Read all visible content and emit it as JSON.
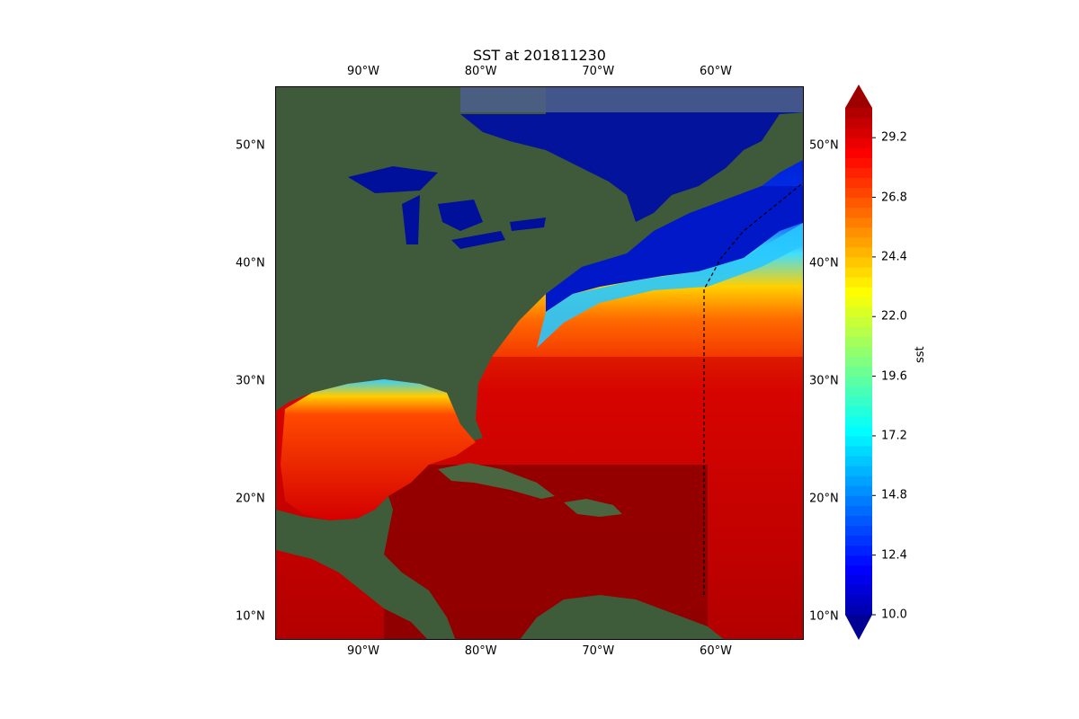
{
  "title": "SST at 201811230",
  "map": {
    "lon_ticks": [
      {
        "value": -90,
        "label": "90°W"
      },
      {
        "value": -80,
        "label": "80°W"
      },
      {
        "value": -70,
        "label": "70°W"
      },
      {
        "value": -60,
        "label": "60°W"
      }
    ],
    "lat_ticks": [
      {
        "value": 50,
        "label": "50°N"
      },
      {
        "value": 40,
        "label": "40°N"
      },
      {
        "value": 30,
        "label": "30°N"
      },
      {
        "value": 20,
        "label": "20°N"
      },
      {
        "value": 10,
        "label": "10°N"
      }
    ],
    "lon_range": [
      -97.5,
      -52.5
    ],
    "lat_range": [
      8,
      55
    ],
    "basemap": "satellite imagery",
    "colormap": "jet",
    "colors": {
      "land": "#3e5a3a",
      "frozen_lake": "#00109a",
      "warm": "#8b0000"
    }
  },
  "colorbar": {
    "label": "sst",
    "min": 10.0,
    "max": 30.4,
    "extend": "both",
    "ticks": [
      "10.0",
      "12.4",
      "14.8",
      "17.2",
      "19.6",
      "22.0",
      "24.4",
      "26.8",
      "29.2"
    ],
    "tick_values": [
      10.0,
      12.4,
      14.8,
      17.2,
      19.6,
      22.0,
      24.4,
      26.8,
      29.2
    ]
  }
}
